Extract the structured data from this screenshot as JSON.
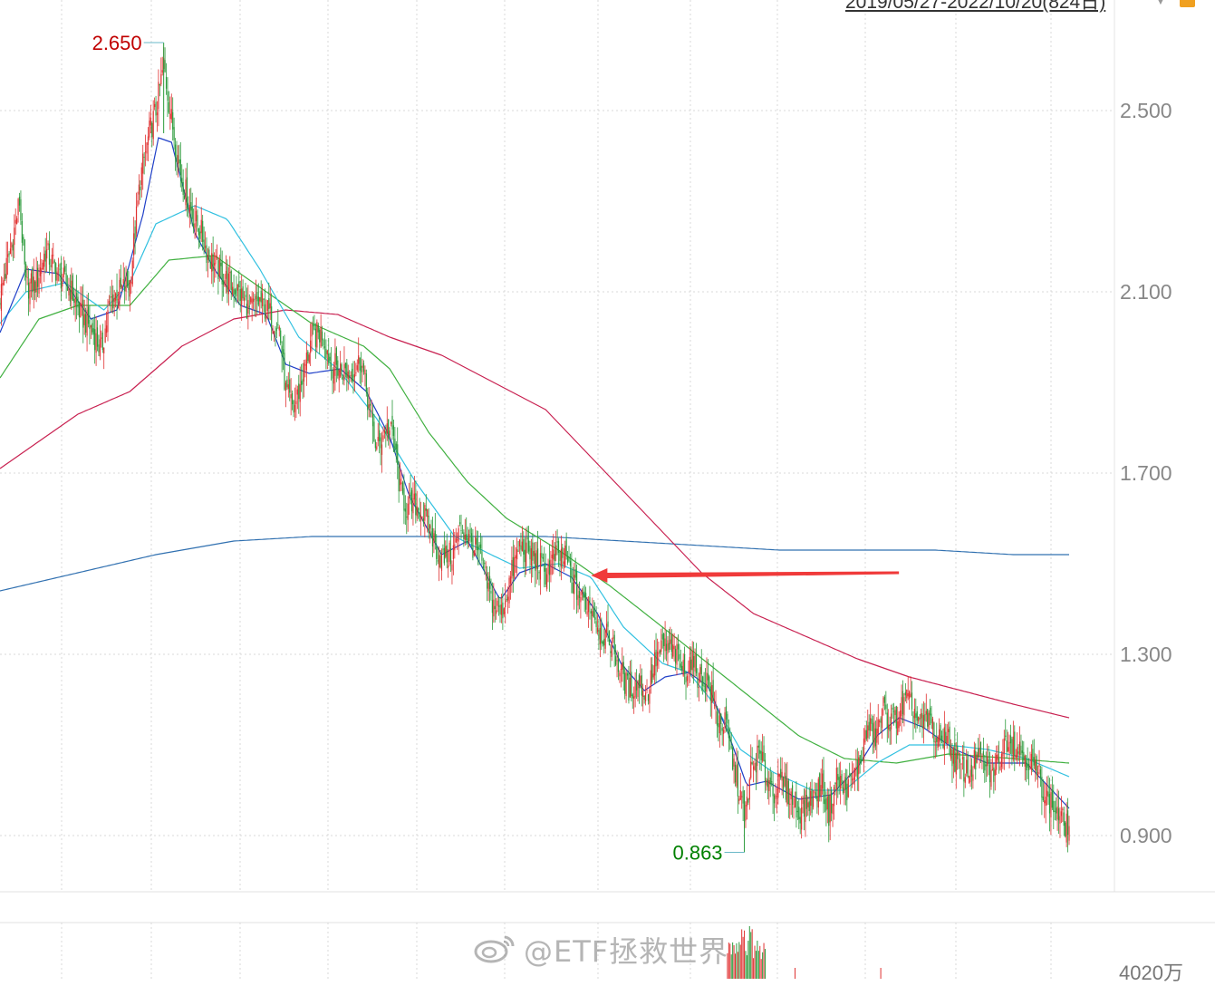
{
  "header": {
    "range_text": "2019/05/27-2022/10/20(824日)"
  },
  "watermark": {
    "text": "@ETF拯救世界"
  },
  "volume_panel": {
    "label": "4020万"
  },
  "colors": {
    "up": "#e03030",
    "down": "#2a9a3a",
    "ma5": "#2040c8",
    "ma10": "#30c0e0",
    "ma20": "#40b040",
    "ma60": "#c82050",
    "ma250": "#3070b0",
    "arrow": "#f03a3a",
    "grid": "#d8d8d8",
    "axis_text": "#888888",
    "max_label": "#c00000",
    "min_label": "#008000"
  },
  "chart_data": {
    "type": "candlestick",
    "period": "2019/05/27-2022/10/20",
    "trading_days": 824,
    "ylim": [
      0.78,
      2.85
    ],
    "y_ticks": [
      "2.500",
      "2.100",
      "1.700",
      "1.300",
      "0.900"
    ],
    "max_marker": {
      "value": "2.650",
      "index": 126
    },
    "min_marker": {
      "value": "0.863",
      "index": 573
    },
    "grid": true,
    "legend": "none",
    "annotation": {
      "type": "arrow",
      "direction": "left",
      "points_to_series": "ma10",
      "from_index": 692,
      "to_index": 455
    },
    "close_anchors": [
      [
        0,
        2.09
      ],
      [
        10,
        2.22
      ],
      [
        15,
        2.3
      ],
      [
        20,
        2.11
      ],
      [
        28,
        2.12
      ],
      [
        35,
        2.19
      ],
      [
        45,
        2.14
      ],
      [
        55,
        2.1
      ],
      [
        62,
        2.05
      ],
      [
        70,
        2.02
      ],
      [
        78,
        1.97
      ],
      [
        85,
        2.08
      ],
      [
        92,
        2.1
      ],
      [
        100,
        2.12
      ],
      [
        108,
        2.35
      ],
      [
        115,
        2.45
      ],
      [
        120,
        2.5
      ],
      [
        126,
        2.6
      ],
      [
        132,
        2.48
      ],
      [
        140,
        2.35
      ],
      [
        148,
        2.27
      ],
      [
        155,
        2.23
      ],
      [
        160,
        2.18
      ],
      [
        168,
        2.15
      ],
      [
        176,
        2.12
      ],
      [
        184,
        2.1
      ],
      [
        192,
        2.06
      ],
      [
        200,
        2.08
      ],
      [
        208,
        2.05
      ],
      [
        215,
        2.02
      ],
      [
        220,
        1.88
      ],
      [
        226,
        1.84
      ],
      [
        232,
        1.9
      ],
      [
        240,
        2.0
      ],
      [
        248,
        2.01
      ],
      [
        255,
        1.94
      ],
      [
        262,
        1.93
      ],
      [
        270,
        1.92
      ],
      [
        278,
        1.95
      ],
      [
        285,
        1.83
      ],
      [
        290,
        1.75
      ],
      [
        297,
        1.8
      ],
      [
        303,
        1.78
      ],
      [
        308,
        1.66
      ],
      [
        314,
        1.62
      ],
      [
        320,
        1.63
      ],
      [
        328,
        1.6
      ],
      [
        335,
        1.54
      ],
      [
        340,
        1.51
      ],
      [
        348,
        1.52
      ],
      [
        355,
        1.58
      ],
      [
        362,
        1.55
      ],
      [
        370,
        1.51
      ],
      [
        378,
        1.42
      ],
      [
        386,
        1.39
      ],
      [
        393,
        1.47
      ],
      [
        400,
        1.54
      ],
      [
        408,
        1.52
      ],
      [
        415,
        1.5
      ],
      [
        420,
        1.48
      ],
      [
        428,
        1.52
      ],
      [
        436,
        1.51
      ],
      [
        442,
        1.45
      ],
      [
        448,
        1.42
      ],
      [
        455,
        1.41
      ],
      [
        462,
        1.35
      ],
      [
        470,
        1.33
      ],
      [
        477,
        1.27
      ],
      [
        484,
        1.22
      ],
      [
        492,
        1.24
      ],
      [
        498,
        1.21
      ],
      [
        505,
        1.29
      ],
      [
        512,
        1.32
      ],
      [
        520,
        1.3
      ],
      [
        527,
        1.26
      ],
      [
        532,
        1.29
      ],
      [
        538,
        1.25
      ],
      [
        545,
        1.24
      ],
      [
        552,
        1.16
      ],
      [
        559,
        1.14
      ],
      [
        565,
        1.05
      ],
      [
        570,
        0.99
      ],
      [
        573,
        0.93
      ],
      [
        578,
        1.04
      ],
      [
        584,
        1.08
      ],
      [
        590,
        1.03
      ],
      [
        596,
        1.0
      ],
      [
        602,
        1.02
      ],
      [
        608,
        0.99
      ],
      [
        614,
        0.95
      ],
      [
        620,
        0.97
      ],
      [
        627,
        0.98
      ],
      [
        632,
        1.02
      ],
      [
        638,
        0.95
      ],
      [
        644,
        1.03
      ],
      [
        650,
        1.0
      ],
      [
        656,
        1.02
      ],
      [
        662,
        1.06
      ],
      [
        668,
        1.14
      ],
      [
        674,
        1.12
      ],
      [
        680,
        1.18
      ],
      [
        686,
        1.15
      ],
      [
        692,
        1.17
      ],
      [
        698,
        1.2
      ],
      [
        704,
        1.17
      ],
      [
        710,
        1.14
      ],
      [
        716,
        1.16
      ],
      [
        722,
        1.1
      ],
      [
        728,
        1.13
      ],
      [
        734,
        1.07
      ],
      [
        740,
        1.05
      ],
      [
        746,
        1.04
      ],
      [
        752,
        1.07
      ],
      [
        758,
        1.06
      ],
      [
        764,
        1.03
      ],
      [
        770,
        1.08
      ],
      [
        776,
        1.12
      ],
      [
        782,
        1.1
      ],
      [
        788,
        1.08
      ],
      [
        794,
        1.06
      ],
      [
        800,
        1.03
      ],
      [
        806,
        0.98
      ],
      [
        812,
        0.96
      ],
      [
        818,
        0.93
      ],
      [
        823,
        0.92
      ]
    ],
    "ma_anchors": {
      "ma5": [
        [
          0,
          2.01
        ],
        [
          20,
          2.15
        ],
        [
          45,
          2.14
        ],
        [
          70,
          2.04
        ],
        [
          90,
          2.06
        ],
        [
          110,
          2.27
        ],
        [
          122,
          2.44
        ],
        [
          132,
          2.43
        ],
        [
          150,
          2.23
        ],
        [
          165,
          2.15
        ],
        [
          185,
          2.07
        ],
        [
          205,
          2.05
        ],
        [
          220,
          1.94
        ],
        [
          238,
          1.92
        ],
        [
          262,
          1.93
        ],
        [
          282,
          1.88
        ],
        [
          300,
          1.78
        ],
        [
          315,
          1.65
        ],
        [
          340,
          1.52
        ],
        [
          360,
          1.55
        ],
        [
          385,
          1.42
        ],
        [
          400,
          1.48
        ],
        [
          420,
          1.5
        ],
        [
          440,
          1.47
        ],
        [
          460,
          1.39
        ],
        [
          478,
          1.28
        ],
        [
          496,
          1.22
        ],
        [
          512,
          1.25
        ],
        [
          530,
          1.26
        ],
        [
          545,
          1.23
        ],
        [
          560,
          1.13
        ],
        [
          575,
          1.01
        ],
        [
          590,
          1.02
        ],
        [
          615,
          0.98
        ],
        [
          640,
          0.99
        ],
        [
          660,
          1.05
        ],
        [
          675,
          1.12
        ],
        [
          692,
          1.16
        ],
        [
          710,
          1.14
        ],
        [
          735,
          1.09
        ],
        [
          760,
          1.06
        ],
        [
          790,
          1.06
        ],
        [
          823,
          0.96
        ]
      ],
      "ma10": [
        [
          0,
          2.03
        ],
        [
          20,
          2.1
        ],
        [
          50,
          2.12
        ],
        [
          80,
          2.06
        ],
        [
          100,
          2.12
        ],
        [
          120,
          2.25
        ],
        [
          150,
          2.29
        ],
        [
          175,
          2.26
        ],
        [
          200,
          2.15
        ],
        [
          230,
          2.0
        ],
        [
          260,
          1.93
        ],
        [
          290,
          1.82
        ],
        [
          320,
          1.68
        ],
        [
          350,
          1.56
        ],
        [
          378,
          1.52
        ],
        [
          400,
          1.49
        ],
        [
          430,
          1.5
        ],
        [
          455,
          1.47
        ],
        [
          480,
          1.36
        ],
        [
          510,
          1.28
        ],
        [
          530,
          1.26
        ],
        [
          550,
          1.19
        ],
        [
          570,
          1.09
        ],
        [
          595,
          1.04
        ],
        [
          625,
          1.0
        ],
        [
          650,
          1.0
        ],
        [
          675,
          1.06
        ],
        [
          700,
          1.1
        ],
        [
          730,
          1.1
        ],
        [
          760,
          1.09
        ],
        [
          790,
          1.07
        ],
        [
          823,
          1.03
        ]
      ],
      "ma20": [
        [
          0,
          1.91
        ],
        [
          30,
          2.04
        ],
        [
          60,
          2.07
        ],
        [
          100,
          2.07
        ],
        [
          130,
          2.17
        ],
        [
          165,
          2.18
        ],
        [
          205,
          2.1
        ],
        [
          240,
          2.03
        ],
        [
          280,
          1.98
        ],
        [
          300,
          1.93
        ],
        [
          330,
          1.79
        ],
        [
          360,
          1.68
        ],
        [
          390,
          1.6
        ],
        [
          430,
          1.53
        ],
        [
          470,
          1.45
        ],
        [
          510,
          1.36
        ],
        [
          545,
          1.28
        ],
        [
          580,
          1.2
        ],
        [
          615,
          1.12
        ],
        [
          650,
          1.07
        ],
        [
          690,
          1.06
        ],
        [
          730,
          1.08
        ],
        [
          780,
          1.07
        ],
        [
          823,
          1.06
        ]
      ],
      "ma60": [
        [
          0,
          1.71
        ],
        [
          60,
          1.83
        ],
        [
          100,
          1.88
        ],
        [
          140,
          1.98
        ],
        [
          180,
          2.04
        ],
        [
          220,
          2.06
        ],
        [
          260,
          2.05
        ],
        [
          300,
          2.0
        ],
        [
          340,
          1.96
        ],
        [
          380,
          1.9
        ],
        [
          420,
          1.84
        ],
        [
          460,
          1.72
        ],
        [
          500,
          1.6
        ],
        [
          540,
          1.48
        ],
        [
          580,
          1.39
        ],
        [
          620,
          1.34
        ],
        [
          660,
          1.29
        ],
        [
          700,
          1.25
        ],
        [
          740,
          1.22
        ],
        [
          780,
          1.19
        ],
        [
          823,
          1.16
        ]
      ],
      "ma250": [
        [
          0,
          1.44
        ],
        [
          60,
          1.48
        ],
        [
          120,
          1.52
        ],
        [
          180,
          1.55
        ],
        [
          240,
          1.56
        ],
        [
          300,
          1.56
        ],
        [
          360,
          1.56
        ],
        [
          420,
          1.56
        ],
        [
          480,
          1.55
        ],
        [
          540,
          1.54
        ],
        [
          600,
          1.53
        ],
        [
          660,
          1.53
        ],
        [
          720,
          1.53
        ],
        [
          780,
          1.52
        ],
        [
          823,
          1.52
        ]
      ]
    }
  }
}
